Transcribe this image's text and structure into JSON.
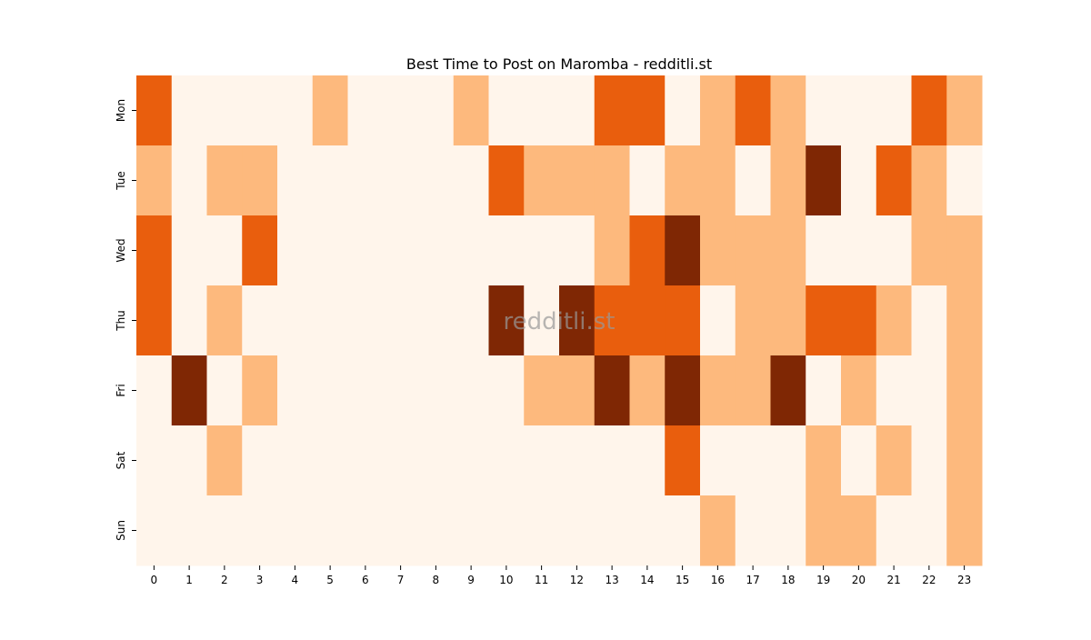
{
  "chart_data": {
    "type": "heatmap",
    "title": "Best Time to Post on Maromba - redditli.st",
    "watermark": "redditli.st",
    "x": [
      0,
      1,
      2,
      3,
      4,
      5,
      6,
      7,
      8,
      9,
      10,
      11,
      12,
      13,
      14,
      15,
      16,
      17,
      18,
      19,
      20,
      21,
      22,
      23
    ],
    "categories": [
      "Mon",
      "Tue",
      "Wed",
      "Thu",
      "Fri",
      "Sat",
      "Sun"
    ],
    "values": [
      [
        2,
        0,
        0,
        0,
        0,
        1,
        0,
        0,
        0,
        1,
        0,
        0,
        0,
        2,
        2,
        0,
        1,
        2,
        1,
        0,
        0,
        0,
        2,
        1
      ],
      [
        1,
        0,
        1,
        1,
        0,
        0,
        0,
        0,
        0,
        0,
        2,
        1,
        1,
        1,
        0,
        1,
        1,
        0,
        1,
        3,
        0,
        2,
        1,
        0
      ],
      [
        2,
        0,
        0,
        2,
        0,
        0,
        0,
        0,
        0,
        0,
        0,
        0,
        0,
        1,
        2,
        3,
        1,
        1,
        1,
        0,
        0,
        0,
        1,
        1
      ],
      [
        2,
        0,
        1,
        0,
        0,
        0,
        0,
        0,
        0,
        0,
        3,
        0,
        3,
        2,
        2,
        2,
        0,
        1,
        1,
        2,
        2,
        1,
        0,
        1
      ],
      [
        0,
        3,
        0,
        1,
        0,
        0,
        0,
        0,
        0,
        0,
        0,
        1,
        1,
        3,
        1,
        3,
        1,
        1,
        3,
        0,
        1,
        0,
        0,
        1
      ],
      [
        0,
        0,
        1,
        0,
        0,
        0,
        0,
        0,
        0,
        0,
        0,
        0,
        0,
        0,
        0,
        2,
        0,
        0,
        0,
        1,
        0,
        1,
        0,
        1
      ],
      [
        0,
        0,
        0,
        0,
        0,
        0,
        0,
        0,
        0,
        0,
        0,
        0,
        0,
        0,
        0,
        0,
        1,
        0,
        0,
        1,
        1,
        0,
        0,
        1
      ]
    ],
    "zlim": [
      0,
      3
    ],
    "colors": [
      "#fff5eb",
      "#fdb97d",
      "#e95e0d",
      "#7f2704"
    ]
  }
}
